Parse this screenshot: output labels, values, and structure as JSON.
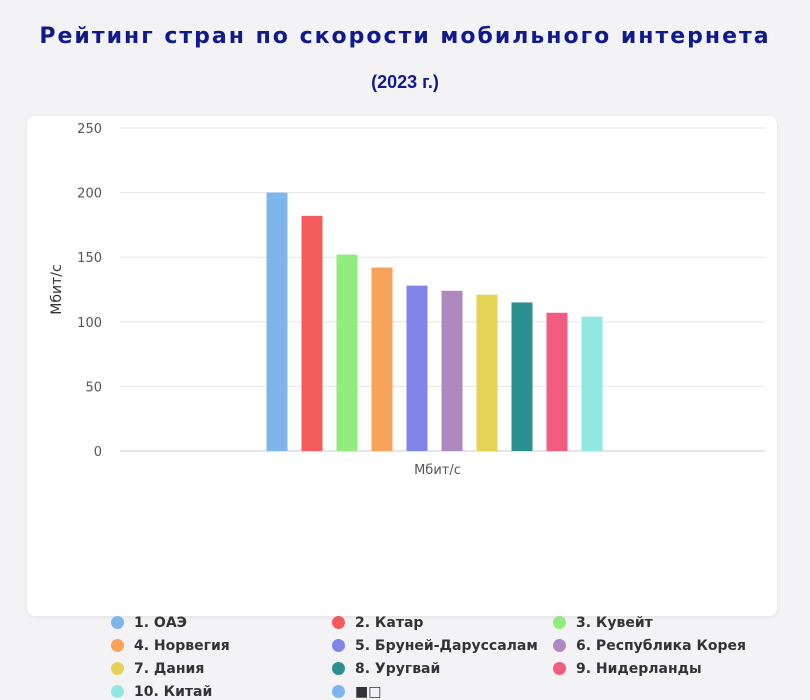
{
  "title": "Рейтинг стран по скорости мобильного интернета",
  "subtitle": "(2023 г.)",
  "chart_data": {
    "type": "bar",
    "title": "Рейтинг стран по скорости мобильного интернета",
    "subtitle": "(2023 г.)",
    "xlabel": "Мбит/с",
    "ylabel": "Мбит/с",
    "ylim": [
      0,
      250
    ],
    "yticks": [
      0,
      50,
      100,
      150,
      200,
      250
    ],
    "grid": true,
    "legend_position": "bottom",
    "series": [
      {
        "name": "1. ОАЭ",
        "value": 200,
        "color": "#7eb6ec"
      },
      {
        "name": "2. Катар",
        "value": 182,
        "color": "#f45b5b"
      },
      {
        "name": "3. Кувейт",
        "value": 152,
        "color": "#90ed7d"
      },
      {
        "name": "4. Норвегия",
        "value": 142,
        "color": "#f7a35c"
      },
      {
        "name": "5. Бруней-Даруссалам",
        "value": 128,
        "color": "#8085e9"
      },
      {
        "name": "6. Республика Корея",
        "value": 124,
        "color": "#ad89c0"
      },
      {
        "name": "7. Дания",
        "value": 121,
        "color": "#e4d354"
      },
      {
        "name": "8. Уругвай",
        "value": 115,
        "color": "#2b908f"
      },
      {
        "name": "9. Нидерланды",
        "value": 107,
        "color": "#f15c80"
      },
      {
        "name": "10. Китай",
        "value": 104,
        "color": "#91e8e1"
      }
    ],
    "extra_legend": {
      "name": "■□",
      "color": "#7eb6ec"
    }
  }
}
